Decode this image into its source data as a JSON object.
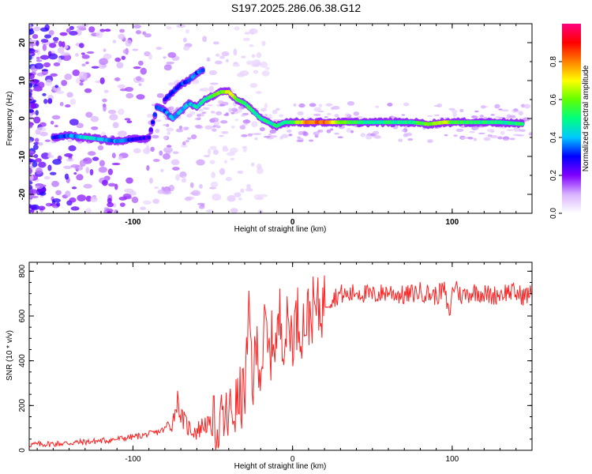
{
  "title": "S197.2025.286.06.38.G12",
  "chart_data": [
    {
      "type": "heatmap",
      "name": "spectrogram",
      "xlabel": "Height of straight line (km)",
      "ylabel": "Frequency (Hz)",
      "xlim": [
        -165,
        150
      ],
      "ylim": [
        -25,
        25
      ],
      "xticks": [
        -100,
        0,
        100
      ],
      "yticks": [
        -20,
        -10,
        0,
        10,
        20
      ],
      "colorbar": {
        "label": "Normalized spectral amplitude",
        "range": [
          0,
          1
        ],
        "ticks": [
          0.0,
          0.2,
          0.4,
          0.6,
          0.8
        ],
        "colors": [
          "#ffffff",
          "#d9b3ff",
          "#8000ff",
          "#0000ff",
          "#00c8ff",
          "#00ff80",
          "#60ff00",
          "#ffff00",
          "#ff8000",
          "#ff0000",
          "#ff0080"
        ]
      },
      "ridge": [
        {
          "x": -150,
          "y": -5,
          "a": 0.3
        },
        {
          "x": -140,
          "y": -4.5,
          "a": 0.35
        },
        {
          "x": -130,
          "y": -5,
          "a": 0.45
        },
        {
          "x": -120,
          "y": -5.5,
          "a": 0.4
        },
        {
          "x": -110,
          "y": -6,
          "a": 0.35
        },
        {
          "x": -100,
          "y": -5.5,
          "a": 0.3
        },
        {
          "x": -90,
          "y": -5,
          "a": 0.25
        },
        {
          "x": -85,
          "y": 3,
          "a": 0.3
        },
        {
          "x": -80,
          "y": 2,
          "a": 0.35
        },
        {
          "x": -75,
          "y": 0,
          "a": 0.4
        },
        {
          "x": -70,
          "y": 2,
          "a": 0.4
        },
        {
          "x": -65,
          "y": 4,
          "a": 0.4
        },
        {
          "x": -60,
          "y": 3,
          "a": 0.45
        },
        {
          "x": -55,
          "y": 5,
          "a": 0.5
        },
        {
          "x": -50,
          "y": 6,
          "a": 0.55
        },
        {
          "x": -45,
          "y": 7,
          "a": 0.6
        },
        {
          "x": -40,
          "y": 7,
          "a": 0.7
        },
        {
          "x": -35,
          "y": 5,
          "a": 0.6
        },
        {
          "x": -30,
          "y": 4,
          "a": 0.5
        },
        {
          "x": -25,
          "y": 2,
          "a": 0.5
        },
        {
          "x": -20,
          "y": 0,
          "a": 0.5
        },
        {
          "x": -15,
          "y": -1,
          "a": 0.45
        },
        {
          "x": -10,
          "y": -2,
          "a": 0.5
        },
        {
          "x": -5,
          "y": -1,
          "a": 0.5
        },
        {
          "x": 0,
          "y": -1,
          "a": 0.55
        },
        {
          "x": 10,
          "y": -1,
          "a": 0.8
        },
        {
          "x": 20,
          "y": -1,
          "a": 0.85
        },
        {
          "x": 30,
          "y": -1,
          "a": 0.6
        },
        {
          "x": 45,
          "y": -1,
          "a": 0.5
        },
        {
          "x": 60,
          "y": -1,
          "a": 0.5
        },
        {
          "x": 75,
          "y": -1,
          "a": 0.5
        },
        {
          "x": 85,
          "y": -1.5,
          "a": 0.6
        },
        {
          "x": 95,
          "y": -1,
          "a": 0.65
        },
        {
          "x": 105,
          "y": -1,
          "a": 0.55
        },
        {
          "x": 115,
          "y": -1,
          "a": 0.5
        },
        {
          "x": 130,
          "y": -1,
          "a": 0.5
        },
        {
          "x": 145,
          "y": -1.5,
          "a": 0.5
        }
      ],
      "branch": [
        {
          "x": -80,
          "y": 5,
          "a": 0.3
        },
        {
          "x": -75,
          "y": 7,
          "a": 0.3
        },
        {
          "x": -70,
          "y": 9,
          "a": 0.3
        },
        {
          "x": -65,
          "y": 10,
          "a": 0.35
        },
        {
          "x": -60,
          "y": 12,
          "a": 0.35
        },
        {
          "x": -55,
          "y": 13,
          "a": 0.3
        }
      ]
    },
    {
      "type": "line",
      "name": "snr",
      "xlabel": "Height of straight line (km)",
      "ylabel": "SNR (10 * v/v)",
      "xlim": [
        -165,
        150
      ],
      "ylim": [
        0,
        840
      ],
      "xticks": [
        -100,
        0,
        100
      ],
      "yticks": [
        0,
        200,
        400,
        600,
        800
      ],
      "color": "#ff2020",
      "series": [
        {
          "name": "SNR",
          "x": [
            -165,
            -155,
            -145,
            -135,
            -125,
            -115,
            -105,
            -95,
            -85,
            -80,
            -75,
            -72,
            -70,
            -65,
            -60,
            -55,
            -50,
            -45,
            -40,
            -35,
            -30,
            -27,
            -25,
            -22,
            -20,
            -17,
            -15,
            -12,
            -10,
            -8,
            -5,
            -3,
            0,
            3,
            5,
            8,
            10,
            13,
            15,
            18,
            20,
            25,
            30,
            35,
            40,
            45,
            50,
            55,
            60,
            65,
            70,
            75,
            80,
            85,
            90,
            95,
            98,
            100,
            102,
            105,
            110,
            115,
            120,
            125,
            130,
            135,
            140,
            145,
            150
          ],
          "y": [
            25,
            28,
            30,
            35,
            40,
            45,
            55,
            65,
            80,
            95,
            130,
            230,
            150,
            100,
            85,
            120,
            100,
            110,
            150,
            200,
            260,
            600,
            300,
            480,
            350,
            560,
            400,
            520,
            470,
            600,
            500,
            560,
            520,
            600,
            550,
            580,
            600,
            630,
            620,
            640,
            660,
            680,
            700,
            690,
            710,
            700,
            690,
            700,
            710,
            700,
            690,
            700,
            710,
            700,
            690,
            720,
            600,
            700,
            750,
            690,
            700,
            710,
            700,
            690,
            700,
            710,
            700,
            690,
            700
          ]
        }
      ]
    }
  ]
}
